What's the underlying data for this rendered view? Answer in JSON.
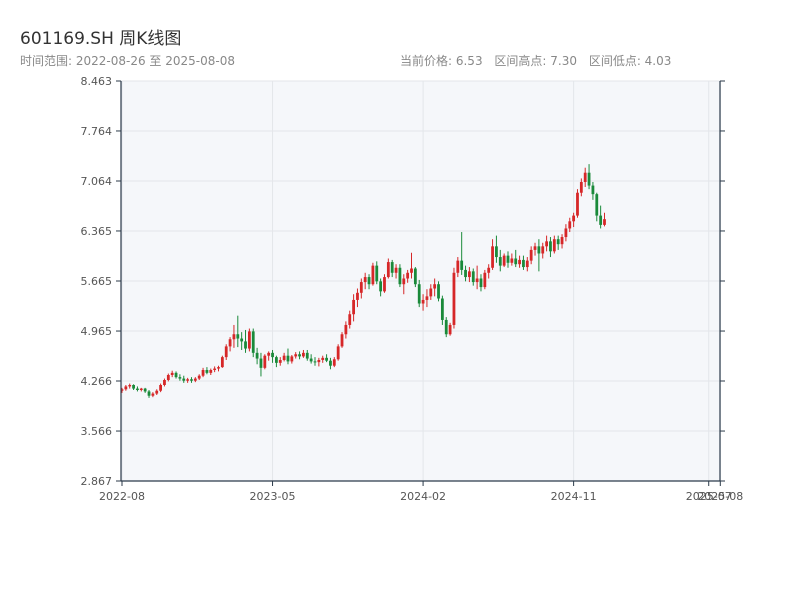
{
  "header": {
    "title": "601169.SH 周K线图",
    "date_range_label": "时间范围: 2022-08-26 至 2025-08-08",
    "current_price_label": "当前价格: 6.53",
    "range_high_label": "区间高点: 7.30",
    "range_low_label": "区间低点: 4.03"
  },
  "colors": {
    "up": "#d62728",
    "down": "#1a8a3a",
    "plot_bg": "#f5f7fa",
    "grid": "#e3e6ea",
    "axis": "#2b3a4a"
  },
  "chart_data": {
    "type": "candlestick",
    "ylim": [
      2.867,
      8.463
    ],
    "y_ticks": [
      "8.463",
      "7.764",
      "7.064",
      "6.365",
      "5.665",
      "4.965",
      "4.266",
      "3.566",
      "2.867"
    ],
    "x_ticks": [
      {
        "label": "2022-08",
        "week": 0
      },
      {
        "label": "2023-05",
        "week": 39
      },
      {
        "label": "2024-02",
        "week": 78
      },
      {
        "label": "2024-11",
        "week": 117
      },
      {
        "label": "2025-07",
        "week": 152
      },
      {
        "label": "2025-08",
        "week": 155
      }
    ],
    "grid": true,
    "candles": [
      [
        4.13,
        4.17,
        4.1,
        4.15
      ],
      [
        4.15,
        4.21,
        4.13,
        4.19
      ],
      [
        4.19,
        4.23,
        4.16,
        4.21
      ],
      [
        4.21,
        4.22,
        4.14,
        4.16
      ],
      [
        4.16,
        4.19,
        4.12,
        4.14
      ],
      [
        4.14,
        4.17,
        4.12,
        4.16
      ],
      [
        4.16,
        4.17,
        4.1,
        4.12
      ],
      [
        4.12,
        4.14,
        4.03,
        4.06
      ],
      [
        4.06,
        4.11,
        4.04,
        4.09
      ],
      [
        4.09,
        4.15,
        4.07,
        4.13
      ],
      [
        4.13,
        4.23,
        4.11,
        4.21
      ],
      [
        4.21,
        4.3,
        4.19,
        4.28
      ],
      [
        4.28,
        4.37,
        4.26,
        4.35
      ],
      [
        4.35,
        4.41,
        4.32,
        4.38
      ],
      [
        4.38,
        4.4,
        4.3,
        4.32
      ],
      [
        4.32,
        4.36,
        4.27,
        4.3
      ],
      [
        4.3,
        4.34,
        4.24,
        4.27
      ],
      [
        4.27,
        4.31,
        4.24,
        4.29
      ],
      [
        4.29,
        4.32,
        4.24,
        4.27
      ],
      [
        4.27,
        4.32,
        4.25,
        4.3
      ],
      [
        4.3,
        4.36,
        4.28,
        4.34
      ],
      [
        4.34,
        4.45,
        4.32,
        4.42
      ],
      [
        4.42,
        4.46,
        4.36,
        4.38
      ],
      [
        4.38,
        4.44,
        4.35,
        4.42
      ],
      [
        4.42,
        4.47,
        4.39,
        4.44
      ],
      [
        4.44,
        4.48,
        4.4,
        4.46
      ],
      [
        4.46,
        4.62,
        4.45,
        4.6
      ],
      [
        4.6,
        4.78,
        4.56,
        4.75
      ],
      [
        4.75,
        4.88,
        4.68,
        4.85
      ],
      [
        4.85,
        5.05,
        4.73,
        4.92
      ],
      [
        4.92,
        5.18,
        4.74,
        4.86
      ],
      [
        4.86,
        4.95,
        4.7,
        4.82
      ],
      [
        4.82,
        4.98,
        4.66,
        4.72
      ],
      [
        4.72,
        5.0,
        4.68,
        4.96
      ],
      [
        4.96,
        5.0,
        4.6,
        4.66
      ],
      [
        4.66,
        4.73,
        4.5,
        4.58
      ],
      [
        4.58,
        4.66,
        4.33,
        4.45
      ],
      [
        4.45,
        4.64,
        4.43,
        4.62
      ],
      [
        4.62,
        4.68,
        4.55,
        4.66
      ],
      [
        4.66,
        4.7,
        4.52,
        4.6
      ],
      [
        4.6,
        4.62,
        4.46,
        4.52
      ],
      [
        4.52,
        4.6,
        4.48,
        4.56
      ],
      [
        4.56,
        4.66,
        4.54,
        4.62
      ],
      [
        4.62,
        4.72,
        4.5,
        4.54
      ],
      [
        4.54,
        4.63,
        4.51,
        4.61
      ],
      [
        4.61,
        4.67,
        4.58,
        4.64
      ],
      [
        4.64,
        4.68,
        4.57,
        4.61
      ],
      [
        4.61,
        4.7,
        4.59,
        4.66
      ],
      [
        4.66,
        4.7,
        4.55,
        4.58
      ],
      [
        4.58,
        4.64,
        4.51,
        4.54
      ],
      [
        4.54,
        4.6,
        4.48,
        4.53
      ],
      [
        4.53,
        4.59,
        4.47,
        4.56
      ],
      [
        4.56,
        4.62,
        4.52,
        4.59
      ],
      [
        4.59,
        4.64,
        4.53,
        4.55
      ],
      [
        4.55,
        4.59,
        4.43,
        4.48
      ],
      [
        4.48,
        4.6,
        4.46,
        4.57
      ],
      [
        4.57,
        4.78,
        4.55,
        4.75
      ],
      [
        4.75,
        4.95,
        4.73,
        4.92
      ],
      [
        4.92,
        5.1,
        4.86,
        5.05
      ],
      [
        5.05,
        5.25,
        5.0,
        5.2
      ],
      [
        5.2,
        5.48,
        5.1,
        5.4
      ],
      [
        5.4,
        5.56,
        5.3,
        5.5
      ],
      [
        5.5,
        5.7,
        5.42,
        5.65
      ],
      [
        5.65,
        5.78,
        5.55,
        5.72
      ],
      [
        5.72,
        5.76,
        5.55,
        5.62
      ],
      [
        5.62,
        5.92,
        5.6,
        5.88
      ],
      [
        5.88,
        5.94,
        5.62,
        5.66
      ],
      [
        5.66,
        5.7,
        5.45,
        5.52
      ],
      [
        5.52,
        5.76,
        5.5,
        5.72
      ],
      [
        5.72,
        5.98,
        5.7,
        5.93
      ],
      [
        5.93,
        5.96,
        5.72,
        5.78
      ],
      [
        5.78,
        5.9,
        5.7,
        5.85
      ],
      [
        5.85,
        5.9,
        5.58,
        5.62
      ],
      [
        5.62,
        5.76,
        5.48,
        5.7
      ],
      [
        5.7,
        5.82,
        5.64,
        5.78
      ],
      [
        5.78,
        6.06,
        5.7,
        5.84
      ],
      [
        5.84,
        5.86,
        5.58,
        5.62
      ],
      [
        5.62,
        5.68,
        5.3,
        5.35
      ],
      [
        5.35,
        5.48,
        5.25,
        5.4
      ],
      [
        5.4,
        5.55,
        5.3,
        5.45
      ],
      [
        5.45,
        5.62,
        5.4,
        5.56
      ],
      [
        5.56,
        5.7,
        5.45,
        5.62
      ],
      [
        5.62,
        5.66,
        5.38,
        5.42
      ],
      [
        5.42,
        5.46,
        5.05,
        5.12
      ],
      [
        5.12,
        5.16,
        4.88,
        4.92
      ],
      [
        4.92,
        5.08,
        4.9,
        5.05
      ],
      [
        5.05,
        5.85,
        5.0,
        5.78
      ],
      [
        5.78,
        6.0,
        5.72,
        5.95
      ],
      [
        5.95,
        6.35,
        5.75,
        5.82
      ],
      [
        5.82,
        5.88,
        5.66,
        5.72
      ],
      [
        5.72,
        5.86,
        5.65,
        5.8
      ],
      [
        5.8,
        5.84,
        5.6,
        5.65
      ],
      [
        5.65,
        5.88,
        5.55,
        5.7
      ],
      [
        5.7,
        5.76,
        5.52,
        5.58
      ],
      [
        5.58,
        5.82,
        5.55,
        5.78
      ],
      [
        5.78,
        5.9,
        5.7,
        5.85
      ],
      [
        5.85,
        6.25,
        5.82,
        6.15
      ],
      [
        6.15,
        6.3,
        5.92,
        6.0
      ],
      [
        6.0,
        6.1,
        5.8,
        5.88
      ],
      [
        5.88,
        6.05,
        5.86,
        6.02
      ],
      [
        6.02,
        6.08,
        5.85,
        5.92
      ],
      [
        5.92,
        6.05,
        5.88,
        5.98
      ],
      [
        5.98,
        6.1,
        5.86,
        5.9
      ],
      [
        5.9,
        6.02,
        5.85,
        5.96
      ],
      [
        5.96,
        6.02,
        5.82,
        5.86
      ],
      [
        5.86,
        6.0,
        5.8,
        5.95
      ],
      [
        5.95,
        6.15,
        5.9,
        6.1
      ],
      [
        6.1,
        6.2,
        6.02,
        6.15
      ],
      [
        6.15,
        6.25,
        5.8,
        6.05
      ],
      [
        6.05,
        6.2,
        5.98,
        6.15
      ],
      [
        6.15,
        6.3,
        6.08,
        6.22
      ],
      [
        6.22,
        6.28,
        6.0,
        6.08
      ],
      [
        6.08,
        6.3,
        6.05,
        6.25
      ],
      [
        6.25,
        6.3,
        6.1,
        6.18
      ],
      [
        6.18,
        6.32,
        6.12,
        6.28
      ],
      [
        6.28,
        6.46,
        6.22,
        6.4
      ],
      [
        6.4,
        6.55,
        6.35,
        6.5
      ],
      [
        6.5,
        6.62,
        6.42,
        6.58
      ],
      [
        6.58,
        6.95,
        6.55,
        6.9
      ],
      [
        6.9,
        7.1,
        6.85,
        7.05
      ],
      [
        7.05,
        7.25,
        6.98,
        7.18
      ],
      [
        7.18,
        7.3,
        6.95,
        7.0
      ],
      [
        7.0,
        7.05,
        6.8,
        6.88
      ],
      [
        6.88,
        6.9,
        6.5,
        6.58
      ],
      [
        6.58,
        6.72,
        6.4,
        6.45
      ],
      [
        6.45,
        6.62,
        6.43,
        6.53
      ]
    ]
  }
}
